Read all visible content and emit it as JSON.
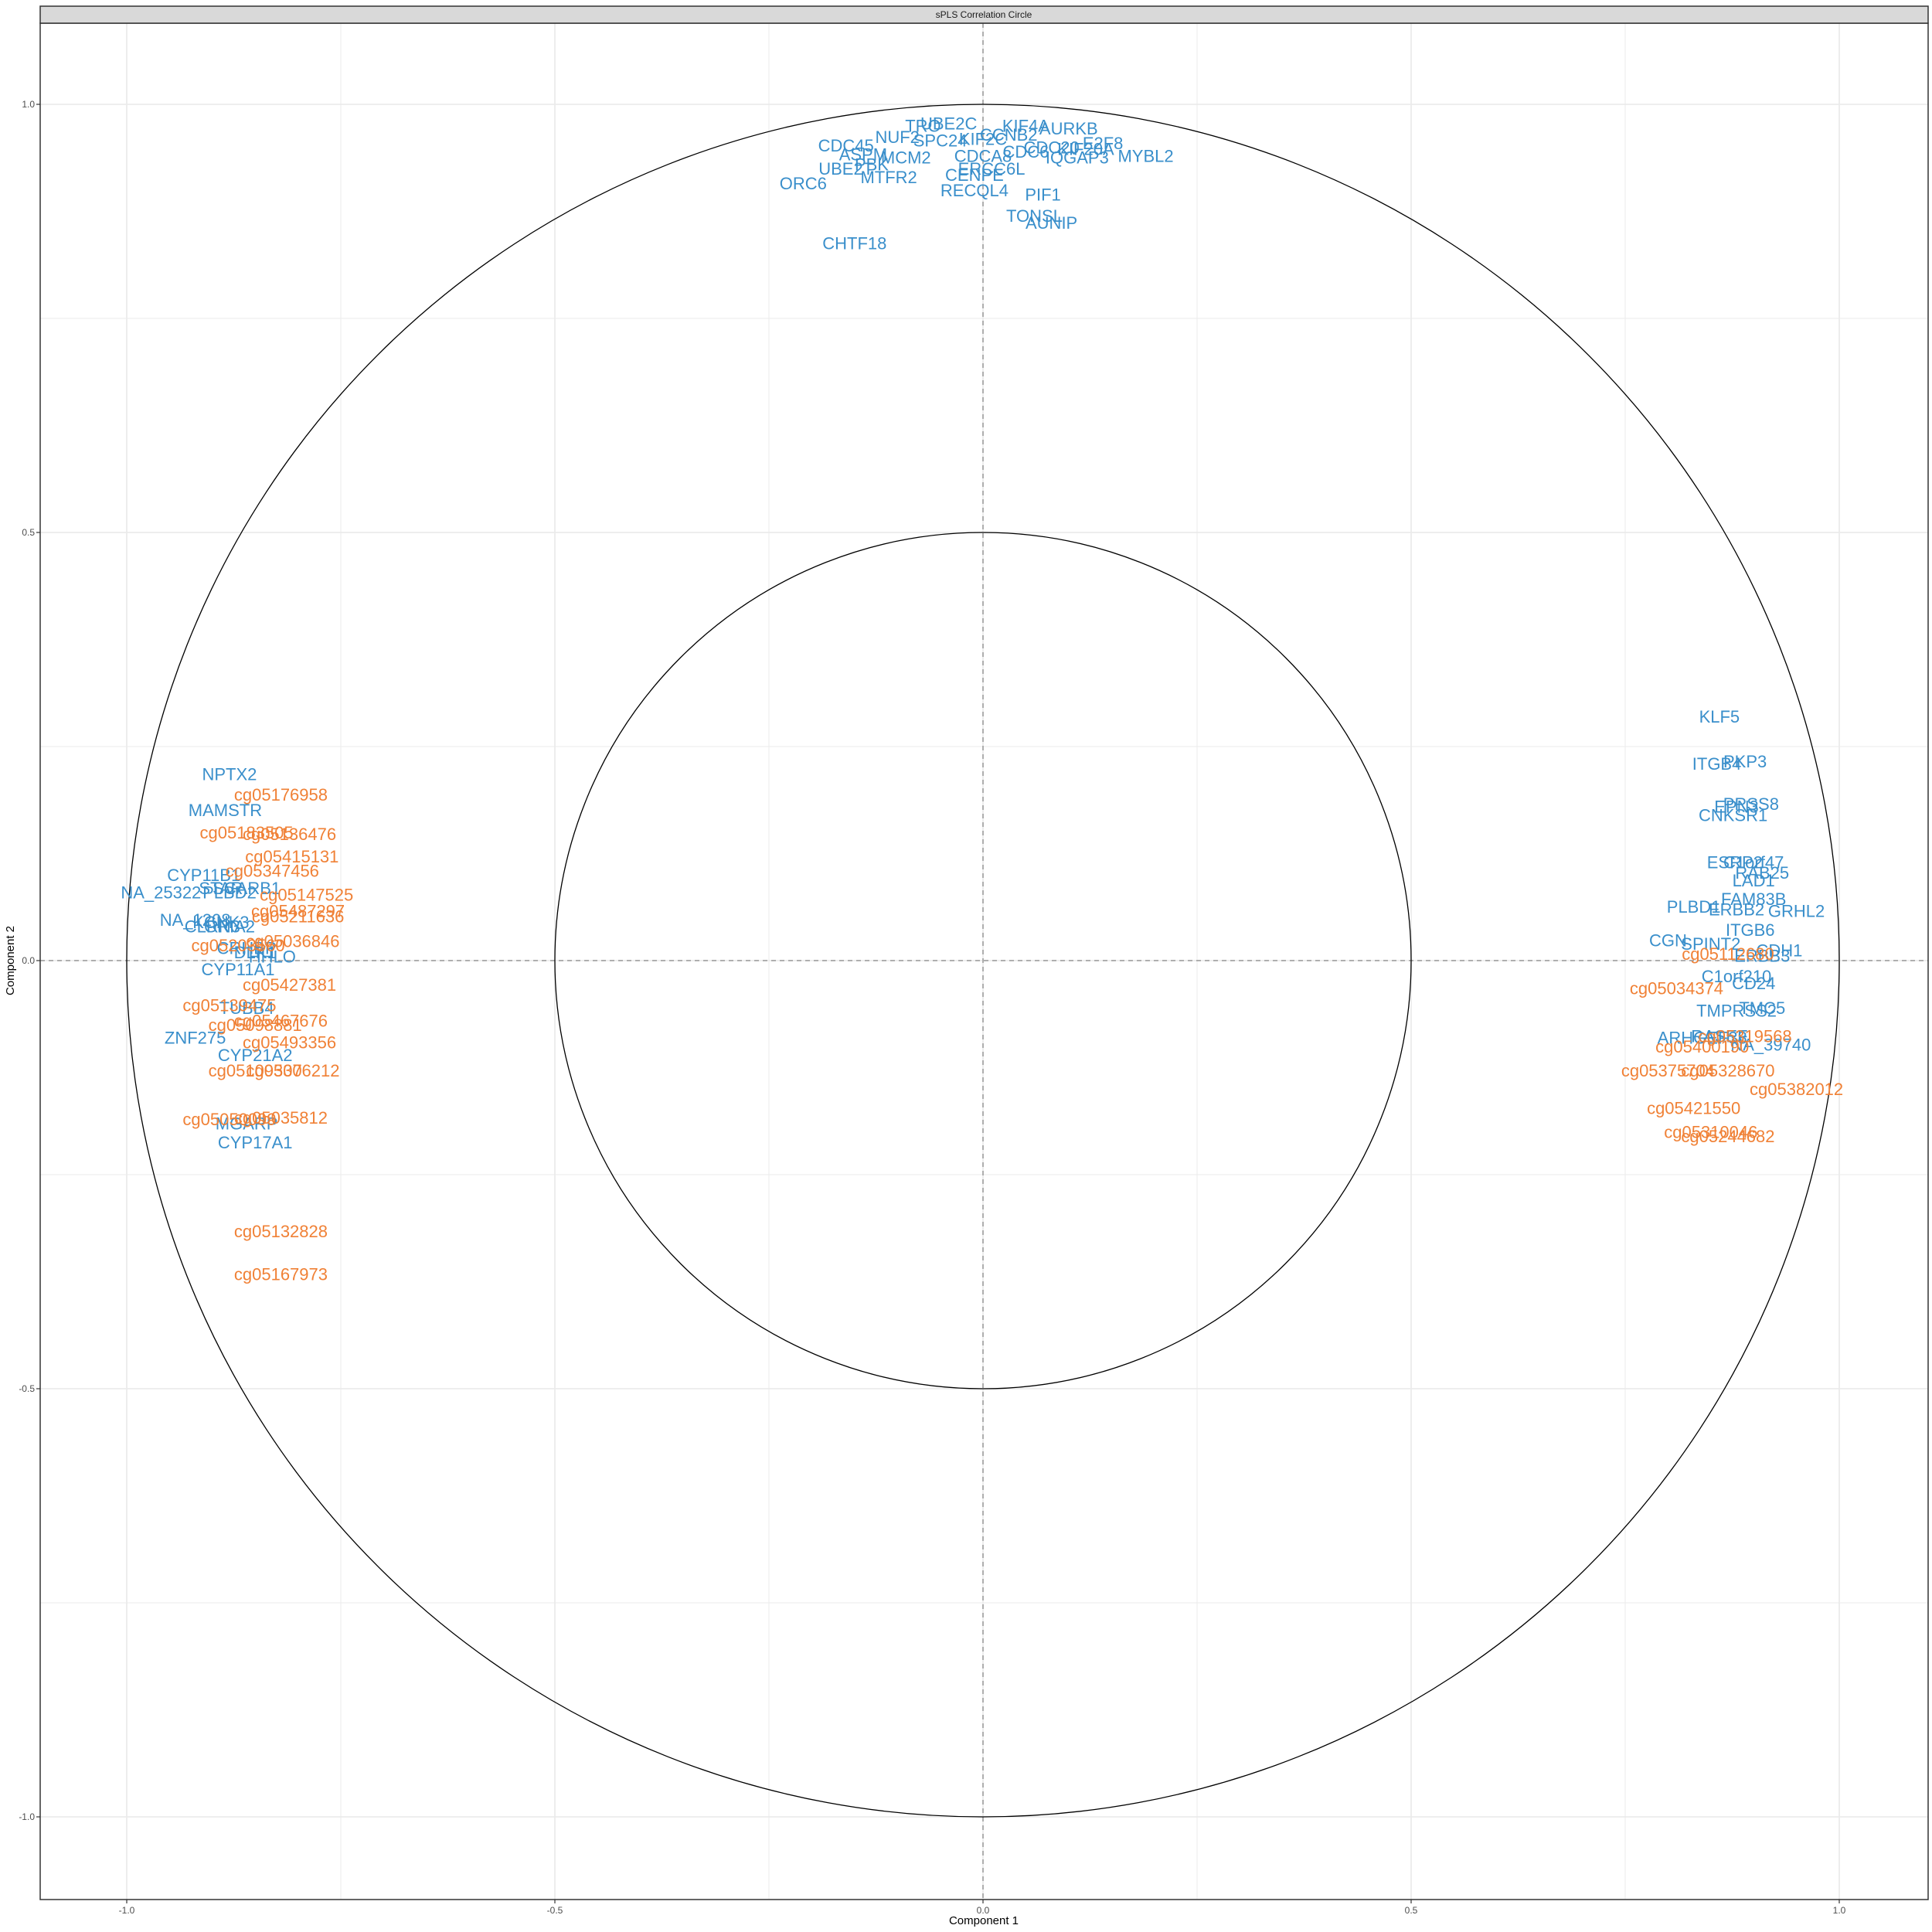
{
  "chart_data": {
    "type": "scatter",
    "title": "sPLS Correlation Circle",
    "xlabel": "Component  1",
    "ylabel": "Component  2",
    "xlim": [
      -1.1,
      1.1
    ],
    "ylim": [
      -1.1,
      1.1
    ],
    "x_ticks": [
      -1.0,
      -0.5,
      0.0,
      0.5,
      1.0
    ],
    "y_ticks": [
      -1.0,
      -0.5,
      0.0,
      0.5,
      1.0
    ],
    "x_tick_labels": [
      "-1.0",
      "-0.5",
      "0.0",
      "0.5",
      "1.0"
    ],
    "y_tick_labels": [
      "-1.0",
      "-0.5",
      "0.0",
      "0.5",
      "1.0"
    ],
    "circles": [
      1.0,
      0.5
    ],
    "grid": true,
    "colors": {
      "gene": "#3a8fcb",
      "cpg": "#f08136",
      "panel_border": "#333333",
      "grid": "#ebebeb",
      "circle": "#000000",
      "refline": "#999999",
      "strip": "#d9d9d9"
    },
    "series": [
      {
        "group": "gene",
        "points": [
          {
            "label": "TRO",
            "x": -0.07,
            "y": 0.975
          },
          {
            "label": "UBE2C",
            "x": -0.04,
            "y": 0.978
          },
          {
            "label": "CDC45",
            "x": -0.16,
            "y": 0.952
          },
          {
            "label": "NUF2",
            "x": -0.1,
            "y": 0.962
          },
          {
            "label": "SPC24",
            "x": -0.05,
            "y": 0.958
          },
          {
            "label": "KIF2C",
            "x": 0.0,
            "y": 0.96
          },
          {
            "label": "KIF4A",
            "x": 0.05,
            "y": 0.975
          },
          {
            "label": "CCNB2",
            "x": 0.03,
            "y": 0.965
          },
          {
            "label": "AURKB",
            "x": 0.1,
            "y": 0.972
          },
          {
            "label": "E2F8",
            "x": 0.14,
            "y": 0.955
          },
          {
            "label": "CDC20",
            "x": 0.08,
            "y": 0.95
          },
          {
            "label": "CDC6",
            "x": 0.05,
            "y": 0.945
          },
          {
            "label": "KIF20A",
            "x": 0.12,
            "y": 0.948
          },
          {
            "label": "ASPM",
            "x": -0.14,
            "y": 0.942
          },
          {
            "label": "MCM2",
            "x": -0.09,
            "y": 0.938
          },
          {
            "label": "CDCA8",
            "x": 0.0,
            "y": 0.94
          },
          {
            "label": "IQGAP3",
            "x": 0.11,
            "y": 0.938
          },
          {
            "label": "MYBL2",
            "x": 0.19,
            "y": 0.94
          },
          {
            "label": "UBE2T",
            "x": -0.16,
            "y": 0.925
          },
          {
            "label": "PBK",
            "x": -0.13,
            "y": 0.93
          },
          {
            "label": "MTFR2",
            "x": -0.11,
            "y": 0.915
          },
          {
            "label": "ERCC6L",
            "x": 0.01,
            "y": 0.925
          },
          {
            "label": "CENPE",
            "x": -0.01,
            "y": 0.918
          },
          {
            "label": "RECQL4",
            "x": -0.01,
            "y": 0.9
          },
          {
            "label": "PIF1",
            "x": 0.07,
            "y": 0.895
          },
          {
            "label": "ORC6",
            "x": -0.21,
            "y": 0.908
          },
          {
            "label": "TONSL",
            "x": 0.06,
            "y": 0.87
          },
          {
            "label": "AUNIP",
            "x": 0.08,
            "y": 0.862
          },
          {
            "label": "CHTF18",
            "x": -0.15,
            "y": 0.838
          },
          {
            "label": "KLF5",
            "x": 0.86,
            "y": 0.285
          },
          {
            "label": "PKP3",
            "x": 0.89,
            "y": 0.233
          },
          {
            "label": "ITGB4",
            "x": 0.857,
            "y": 0.23
          },
          {
            "label": "EPN3",
            "x": 0.88,
            "y": 0.18
          },
          {
            "label": "PRSS8",
            "x": 0.897,
            "y": 0.183
          },
          {
            "label": "CNKSR1",
            "x": 0.876,
            "y": 0.17
          },
          {
            "label": "ESRP2",
            "x": 0.878,
            "y": 0.115
          },
          {
            "label": "C1orf47",
            "x": 0.9,
            "y": 0.115
          },
          {
            "label": "RAB25",
            "x": 0.91,
            "y": 0.103
          },
          {
            "label": "LAD1",
            "x": 0.9,
            "y": 0.094
          },
          {
            "label": "FAM83B",
            "x": 0.9,
            "y": 0.072
          },
          {
            "label": "PLBD1",
            "x": 0.83,
            "y": 0.063
          },
          {
            "label": "ERBB2",
            "x": 0.88,
            "y": 0.06
          },
          {
            "label": "GRHL2",
            "x": 0.95,
            "y": 0.058
          },
          {
            "label": "ITGB6",
            "x": 0.896,
            "y": 0.036
          },
          {
            "label": "CGN",
            "x": 0.8,
            "y": 0.024
          },
          {
            "label": "SPINT2",
            "x": 0.85,
            "y": 0.02
          },
          {
            "label": "CDH1",
            "x": 0.93,
            "y": 0.012
          },
          {
            "label": "ERBB3",
            "x": 0.91,
            "y": 0.006
          },
          {
            "label": "C1orf210",
            "x": 0.88,
            "y": -0.018
          },
          {
            "label": "CD24",
            "x": 0.9,
            "y": -0.026
          },
          {
            "label": "TMPRSS2",
            "x": 0.88,
            "y": -0.058
          },
          {
            "label": "TMC5",
            "x": 0.91,
            "y": -0.055
          },
          {
            "label": "RASEF",
            "x": 0.86,
            "y": -0.088
          },
          {
            "label": "ARHGEF38",
            "x": 0.84,
            "y": -0.09
          },
          {
            "label": "NA_39740",
            "x": 0.92,
            "y": -0.098
          },
          {
            "label": "NPTX2",
            "x": -0.88,
            "y": 0.218
          },
          {
            "label": "MAMSTR",
            "x": -0.885,
            "y": 0.176
          },
          {
            "label": "CYP11B1",
            "x": -0.91,
            "y": 0.1
          },
          {
            "label": "STAR",
            "x": -0.89,
            "y": 0.085
          },
          {
            "label": "SCARB1",
            "x": -0.86,
            "y": 0.085
          },
          {
            "label": "PLBD2",
            "x": -0.88,
            "y": 0.08
          },
          {
            "label": "NA_25322",
            "x": -0.96,
            "y": 0.08
          },
          {
            "label": "NA_1208",
            "x": -0.92,
            "y": 0.048
          },
          {
            "label": "KCNK3",
            "x": -0.89,
            "y": 0.045
          },
          {
            "label": "CLRN3",
            "x": -0.9,
            "y": 0.04
          },
          {
            "label": "GRIA2",
            "x": -0.88,
            "y": 0.04
          },
          {
            "label": "CRHBP",
            "x": -0.86,
            "y": 0.015
          },
          {
            "label": "DLK1",
            "x": -0.85,
            "y": 0.01
          },
          {
            "label": "HHLO",
            "x": -0.83,
            "y": 0.005
          },
          {
            "label": "CYP11A1",
            "x": -0.87,
            "y": -0.01
          },
          {
            "label": "TUBB4",
            "x": -0.86,
            "y": -0.055
          },
          {
            "label": "ZNF275",
            "x": -0.92,
            "y": -0.09
          },
          {
            "label": "CYP21A2",
            "x": -0.85,
            "y": -0.11
          },
          {
            "label": "MGARP",
            "x": -0.86,
            "y": -0.19
          },
          {
            "label": "CYP17A1",
            "x": -0.85,
            "y": -0.212
          }
        ]
      },
      {
        "group": "cpg",
        "points": [
          {
            "label": "cg05176958",
            "x": -0.82,
            "y": 0.194
          },
          {
            "label": "cg05136476",
            "x": -0.81,
            "y": 0.148
          },
          {
            "label": "cg05183505",
            "x": -0.86,
            "y": 0.15
          },
          {
            "label": "cg05415131",
            "x": -0.807,
            "y": 0.122
          },
          {
            "label": "cg05347456",
            "x": -0.83,
            "y": 0.105
          },
          {
            "label": "cg05147525",
            "x": -0.79,
            "y": 0.077
          },
          {
            "label": "cg05487297",
            "x": -0.8,
            "y": 0.058
          },
          {
            "label": "cg05211636",
            "x": -0.8,
            "y": 0.052
          },
          {
            "label": "cg05036846",
            "x": -0.806,
            "y": 0.023
          },
          {
            "label": "cg05203560",
            "x": -0.87,
            "y": 0.018
          },
          {
            "label": "cg05427381",
            "x": -0.81,
            "y": -0.028
          },
          {
            "label": "cg05139475",
            "x": -0.88,
            "y": -0.052
          },
          {
            "label": "cg05467676",
            "x": -0.82,
            "y": -0.07
          },
          {
            "label": "cg05098881",
            "x": -0.85,
            "y": -0.075
          },
          {
            "label": "cg05493356",
            "x": -0.81,
            "y": -0.095
          },
          {
            "label": "cg05306212",
            "x": -0.806,
            "y": -0.128
          },
          {
            "label": "cg05109307",
            "x": -0.85,
            "y": -0.128
          },
          {
            "label": "cg05035812",
            "x": -0.82,
            "y": -0.183
          },
          {
            "label": "cg05050099",
            "x": -0.88,
            "y": -0.185
          },
          {
            "label": "cg05132828",
            "x": -0.82,
            "y": -0.316
          },
          {
            "label": "cg05167973",
            "x": -0.82,
            "y": -0.366
          },
          {
            "label": "cg05034374",
            "x": 0.81,
            "y": -0.032
          },
          {
            "label": "cg05112680",
            "x": 0.87,
            "y": 0.008
          },
          {
            "label": "cg05400190",
            "x": 0.84,
            "y": -0.1
          },
          {
            "label": "cg05319568",
            "x": 0.89,
            "y": -0.088
          },
          {
            "label": "cg05375704",
            "x": 0.8,
            "y": -0.128
          },
          {
            "label": "cg05328670",
            "x": 0.87,
            "y": -0.128
          },
          {
            "label": "cg05382012",
            "x": 0.95,
            "y": -0.15
          },
          {
            "label": "cg05421550",
            "x": 0.83,
            "y": -0.172
          },
          {
            "label": "cg05310046",
            "x": 0.85,
            "y": -0.2
          },
          {
            "label": "cg05244682",
            "x": 0.87,
            "y": -0.205
          }
        ]
      }
    ]
  }
}
